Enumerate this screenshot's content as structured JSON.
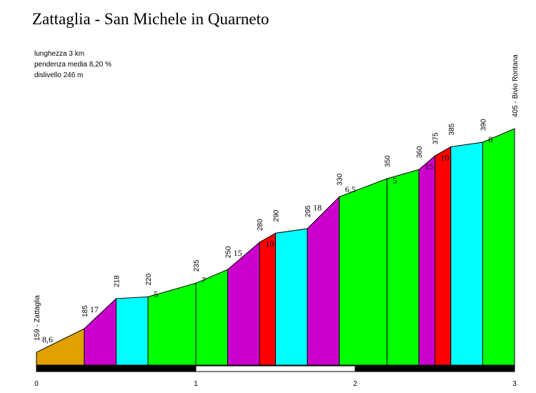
{
  "chart_data": {
    "type": "area",
    "title": "Zattaglia - San Michele in Quarneto",
    "info": [
      "lunghezza 3 km",
      "pendenza media 8,20 %",
      "dislivello 246 m"
    ],
    "xlabel": "",
    "ylabel": "",
    "xlim": [
      0,
      3
    ],
    "x_ticks": [
      0,
      1,
      2,
      3
    ],
    "x_tick_labels": [
      "0",
      "1",
      "2",
      "3"
    ],
    "points": [
      {
        "km": 0.0,
        "alt": 159,
        "label": "159 - Zattaglia"
      },
      {
        "km": 0.3,
        "alt": 185,
        "label": "185"
      },
      {
        "km": 0.5,
        "alt": 218,
        "label": "218"
      },
      {
        "km": 0.7,
        "alt": 220,
        "label": "220"
      },
      {
        "km": 1.0,
        "alt": 235,
        "label": "235"
      },
      {
        "km": 1.2,
        "alt": 250,
        "label": "250"
      },
      {
        "km": 1.4,
        "alt": 280,
        "label": "280"
      },
      {
        "km": 1.5,
        "alt": 290,
        "label": "290"
      },
      {
        "km": 1.7,
        "alt": 295,
        "label": "295"
      },
      {
        "km": 1.9,
        "alt": 330,
        "label": "330"
      },
      {
        "km": 2.2,
        "alt": 350,
        "label": "350"
      },
      {
        "km": 2.4,
        "alt": 360,
        "label": "360"
      },
      {
        "km": 2.5,
        "alt": 375,
        "label": "375"
      },
      {
        "km": 2.6,
        "alt": 385,
        "label": "385"
      },
      {
        "km": 2.8,
        "alt": 390,
        "label": "390"
      },
      {
        "km": 3.0,
        "alt": 405,
        "label": "405 - Bivio Rontana"
      }
    ],
    "segments": [
      {
        "grade": "8,6",
        "color": "#e0a000"
      },
      {
        "grade": "17",
        "color": "#cc00cc"
      },
      {
        "grade": "",
        "color": "#00ffff"
      },
      {
        "grade": "5",
        "color": "#00ff00"
      },
      {
        "grade": "7",
        "color": "#00ff00"
      },
      {
        "grade": "15",
        "color": "#cc00cc"
      },
      {
        "grade": "10",
        "color": "#ff0000"
      },
      {
        "grade": "",
        "color": "#00ffff"
      },
      {
        "grade": "18",
        "color": "#cc00cc"
      },
      {
        "grade": "6,5",
        "color": "#00ff00"
      },
      {
        "grade": "5",
        "color": "#00ff00"
      },
      {
        "grade": "15",
        "color": "#cc00cc"
      },
      {
        "grade": "10",
        "color": "#ff0000"
      },
      {
        "grade": "",
        "color": "#00ffff"
      },
      {
        "grade": "8",
        "color": "#00ff00"
      }
    ],
    "km_bar": [
      "#000000",
      "#ffffff",
      "#000000"
    ]
  }
}
